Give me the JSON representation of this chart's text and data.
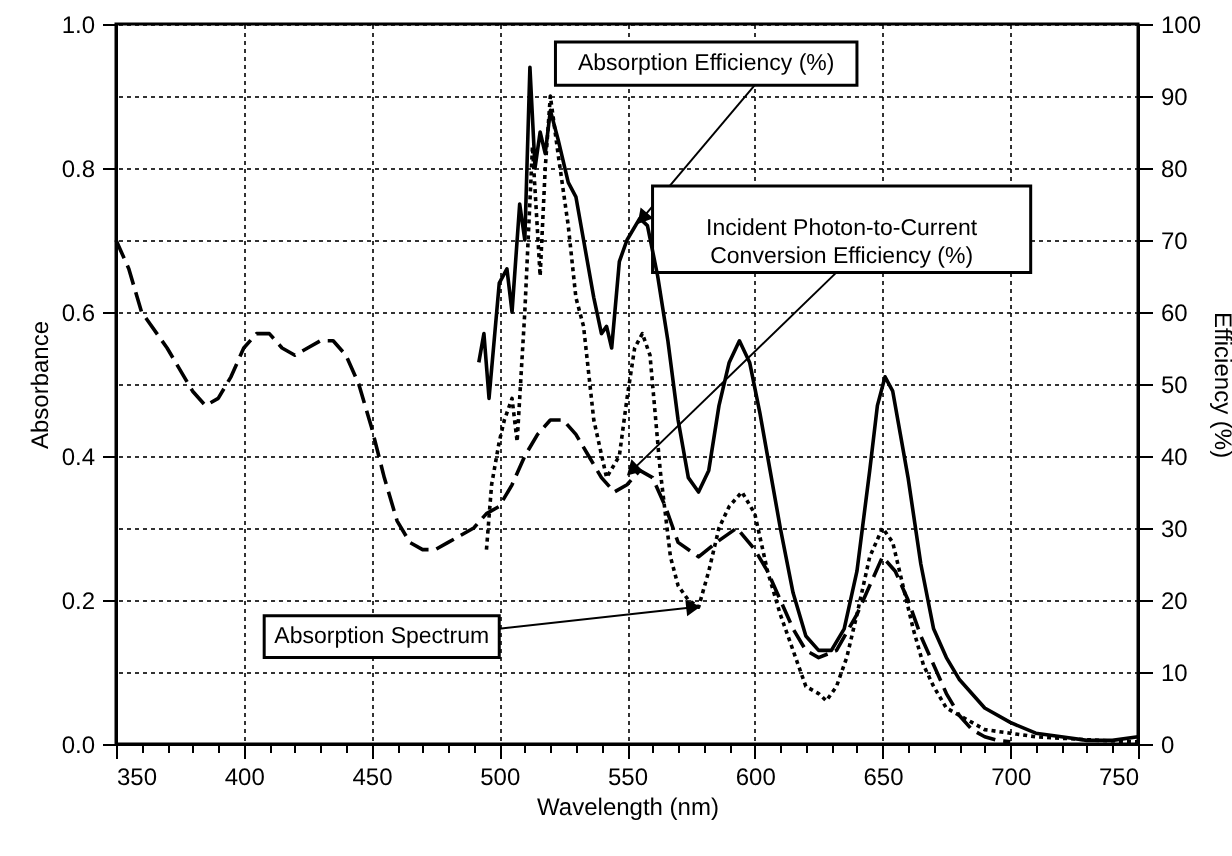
{
  "chart_data": {
    "type": "line",
    "xlabel": "Wavelength (nm)",
    "ylabel": "Absorbance",
    "y2label": "Efficiency (%)",
    "xlim": [
      350,
      750
    ],
    "xticks": [
      350,
      {
        "value": 360,
        "label": null
      },
      {
        "value": 370,
        "label": null
      },
      {
        "value": 380,
        "label": null
      },
      {
        "value": 390,
        "label": null
      },
      400,
      {
        "value": 410,
        "label": null
      },
      {
        "value": 420,
        "label": null
      },
      {
        "value": 430,
        "label": null
      },
      {
        "value": 440,
        "label": null
      },
      450,
      {
        "value": 460,
        "label": null
      },
      {
        "value": 470,
        "label": null
      },
      {
        "value": 480,
        "label": null
      },
      {
        "value": 490,
        "label": null
      },
      500,
      {
        "value": 510,
        "label": null
      },
      {
        "value": 520,
        "label": null
      },
      {
        "value": 530,
        "label": null
      },
      {
        "value": 540,
        "label": null
      },
      550,
      {
        "value": 560,
        "label": null
      },
      {
        "value": 570,
        "label": null
      },
      {
        "value": 580,
        "label": null
      },
      {
        "value": 590,
        "label": null
      },
      600,
      {
        "value": 610,
        "label": null
      },
      {
        "value": 620,
        "label": null
      },
      {
        "value": 630,
        "label": null
      },
      {
        "value": 640,
        "label": null
      },
      650,
      {
        "value": 660,
        "label": null
      },
      {
        "value": 670,
        "label": null
      },
      {
        "value": 680,
        "label": null
      },
      {
        "value": 690,
        "label": null
      },
      700,
      {
        "value": 710,
        "label": null
      },
      {
        "value": 720,
        "label": null
      },
      {
        "value": 730,
        "label": null
      },
      {
        "value": 740,
        "label": null
      },
      750
    ],
    "ylim": [
      0,
      1
    ],
    "yticks": [
      {
        "value": 0,
        "label": "0.0"
      },
      0.2,
      0.4,
      0.6,
      0.8,
      {
        "value": 1,
        "label": "1.0"
      }
    ],
    "y2lim": [
      0,
      100
    ],
    "y2ticks": [
      0,
      10,
      20,
      30,
      40,
      50,
      60,
      70,
      80,
      90,
      100
    ],
    "grid": true,
    "marker": "none",
    "series": [
      {
        "color": "#000000",
        "line_style": "dashed",
        "x": [
          350,
          355,
          360,
          370,
          380,
          385,
          390,
          395,
          400,
          405,
          410,
          415,
          420,
          425,
          430,
          435,
          440,
          445,
          450,
          455,
          460,
          465,
          470,
          475,
          480,
          485,
          490,
          495,
          500,
          505,
          510,
          515,
          520,
          525,
          530,
          535,
          540,
          545,
          550,
          555,
          560,
          565,
          570,
          578,
          585,
          593,
          600,
          605,
          610,
          615,
          620,
          625,
          632,
          640,
          645,
          650,
          655,
          660,
          665,
          670,
          675,
          680,
          685,
          690,
          695,
          700
        ],
        "values": [
          0.7,
          0.66,
          0.6,
          0.55,
          0.49,
          0.47,
          0.48,
          0.51,
          0.55,
          0.57,
          0.57,
          0.55,
          0.54,
          0.55,
          0.56,
          0.56,
          0.54,
          0.5,
          0.44,
          0.37,
          0.31,
          0.28,
          0.27,
          0.27,
          0.28,
          0.29,
          0.3,
          0.32,
          0.33,
          0.36,
          0.4,
          0.43,
          0.45,
          0.45,
          0.43,
          0.4,
          0.37,
          0.35,
          0.36,
          0.38,
          0.37,
          0.33,
          0.28,
          0.26,
          0.28,
          0.3,
          0.27,
          0.24,
          0.2,
          0.16,
          0.13,
          0.12,
          0.13,
          0.18,
          0.22,
          0.26,
          0.24,
          0.2,
          0.15,
          0.11,
          0.07,
          0.04,
          0.02,
          0.01,
          0.005,
          0.003
        ]
      },
      {
        "color": "#000000",
        "line_style": "solid",
        "axis": "y2",
        "x": [
          492,
          494,
          496,
          500,
          503,
          505,
          508,
          510,
          512,
          514,
          516,
          518,
          520,
          523,
          527,
          530,
          533,
          537,
          540,
          542,
          544,
          547,
          550,
          555,
          558,
          562,
          566,
          570,
          574,
          578,
          582,
          586,
          590,
          594,
          598,
          602,
          606,
          610,
          615,
          620,
          625,
          630,
          635,
          640,
          645,
          648,
          651,
          654,
          657,
          660,
          665,
          670,
          675,
          680,
          690,
          700,
          710,
          720,
          730,
          740,
          750
        ],
        "values": [
          53,
          57,
          48,
          64,
          66,
          60,
          75,
          70,
          94,
          80,
          85,
          82,
          88,
          84,
          78,
          76,
          70,
          62,
          57,
          58,
          55,
          67,
          70,
          73,
          72,
          65,
          56,
          45,
          37,
          35,
          38,
          47,
          53,
          56,
          53,
          46,
          38,
          30,
          21,
          15,
          13,
          13,
          16,
          24,
          38,
          47,
          51,
          49,
          43,
          37,
          25,
          16,
          12,
          9,
          5,
          3,
          1.5,
          1,
          0.5,
          0.5,
          1
        ]
      },
      {
        "color": "#000000",
        "line_style": "dotted",
        "axis": "y2",
        "x": [
          495,
          497,
          500,
          502,
          505,
          507,
          510,
          513,
          516,
          518,
          520,
          523,
          527,
          530,
          533,
          537,
          542,
          547,
          550,
          553,
          556,
          559,
          563,
          567,
          570,
          574,
          578,
          582,
          586,
          590,
          595,
          600,
          605,
          610,
          615,
          620,
          625,
          628,
          632,
          636,
          640,
          645,
          650,
          654,
          658,
          662,
          666,
          670,
          675,
          680,
          685,
          690,
          700,
          710,
          720,
          735,
          750
        ],
        "values": [
          27,
          36,
          42,
          45,
          48,
          42,
          60,
          83,
          65,
          80,
          90,
          82,
          72,
          62,
          58,
          45,
          37,
          40,
          48,
          55,
          57,
          54,
          38,
          26,
          22,
          20,
          19,
          24,
          30,
          33,
          35,
          32,
          24,
          18,
          13,
          8,
          7,
          6,
          8,
          12,
          18,
          26,
          30,
          28,
          22,
          16,
          11,
          8,
          5,
          4,
          3,
          2,
          1.5,
          1,
          0.8,
          0.5,
          0.3
        ]
      }
    ],
    "annotations": [
      {
        "text": "Absorption Efficiency (%)",
        "x": 556,
        "y": 0.73
      },
      {
        "text": "Incident Photon-to-Current\nConversion Efficiency (%)",
        "x": 552,
        "y": 0.38
      },
      {
        "text": "Absorption Spectrum",
        "x": 576,
        "y": 0.19
      }
    ]
  }
}
